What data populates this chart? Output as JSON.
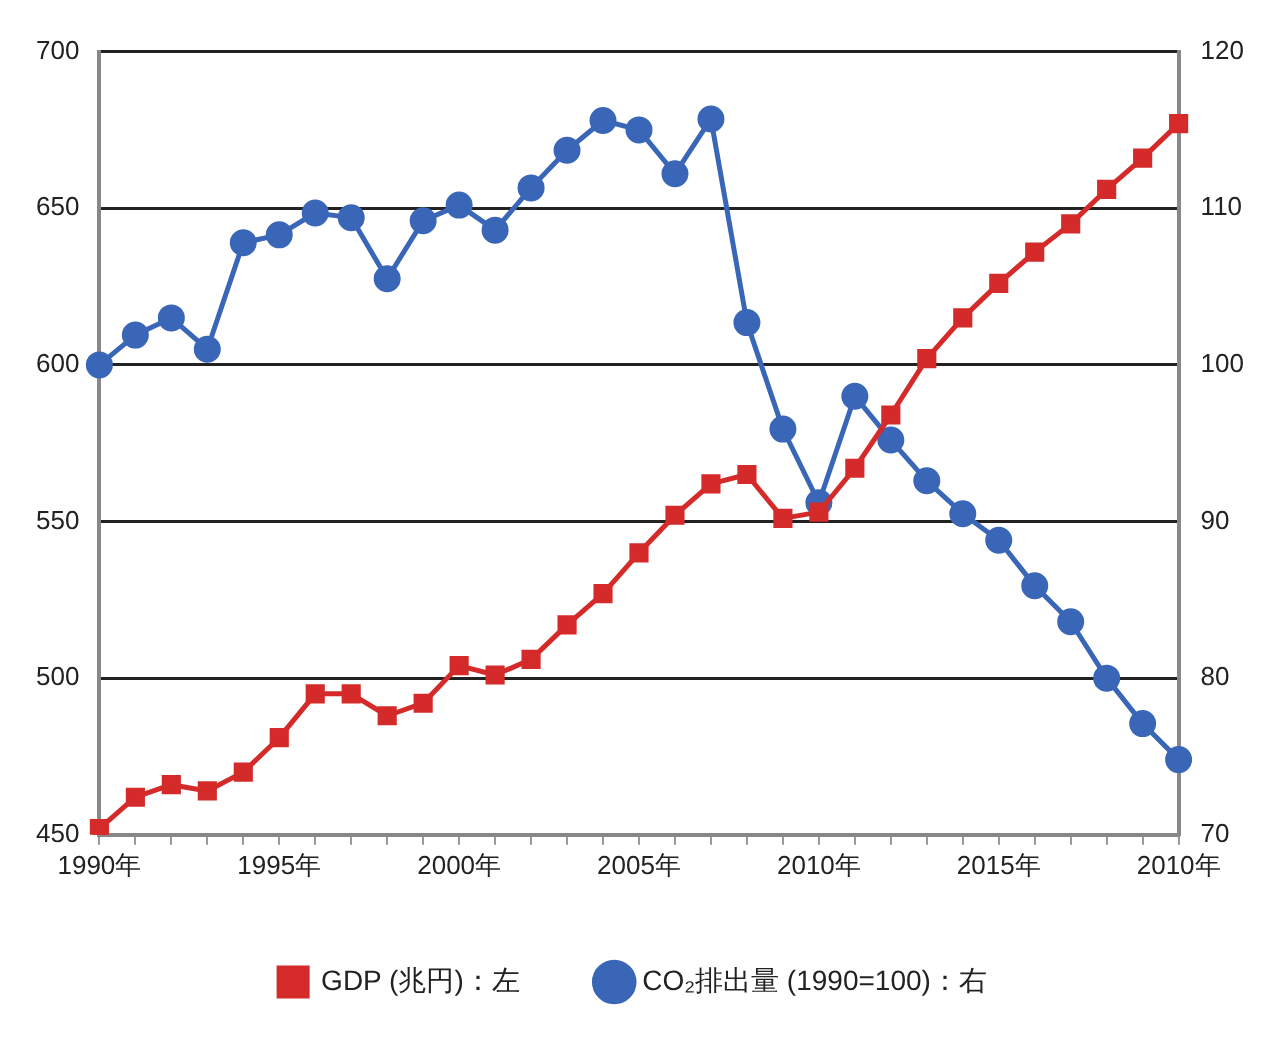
{
  "chart_data": {
    "type": "line",
    "categories": [
      "1990年",
      null,
      null,
      null,
      null,
      "1995年",
      null,
      null,
      null,
      null,
      "2000年",
      null,
      null,
      null,
      null,
      "2005年",
      null,
      null,
      null,
      null,
      "2010年",
      null,
      null,
      null,
      null,
      "2015年",
      null,
      null,
      null,
      null,
      "2010年"
    ],
    "series": [
      {
        "name": "GDP (兆円)：左",
        "color": "#d42a2a",
        "marker": "square",
        "values": [
          452,
          462,
          466,
          464,
          470,
          481,
          495,
          495,
          488,
          492,
          504,
          501,
          506,
          517,
          527,
          540,
          552,
          562,
          565,
          551,
          553,
          567,
          584,
          602,
          615,
          626,
          636,
          645,
          656,
          666,
          677
        ]
      },
      {
        "name": "CO₂排出量 (1990=100)：右",
        "color": "#3a66b8",
        "marker": "circle",
        "axis": "y2",
        "values": [
          100,
          101.9,
          103,
          101,
          107.8,
          108.3,
          109.7,
          109.4,
          105.5,
          109.2,
          110.2,
          108.6,
          111.3,
          113.7,
          115.6,
          115,
          112.2,
          115.7,
          102.7,
          95.9,
          91.2,
          98,
          95.2,
          92.6,
          90.5,
          88.8,
          85.9,
          83.6,
          80,
          77.1,
          74.8
        ]
      }
    ],
    "ylim": [
      450,
      700
    ],
    "yticks": [
      450,
      500,
      550,
      600,
      650,
      700
    ],
    "y2lim": [
      70,
      120
    ],
    "y2ticks": [
      70,
      80,
      90,
      100,
      110,
      120
    ],
    "grid": "y",
    "legend": "bottom"
  }
}
